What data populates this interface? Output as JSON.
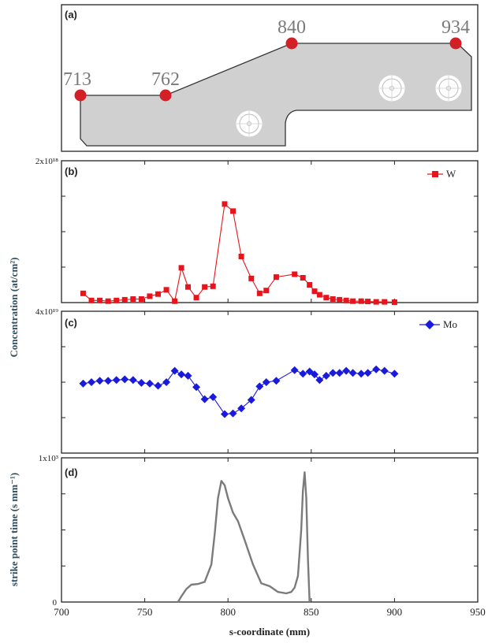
{
  "panels": {
    "a": "(a)",
    "b": "(b)",
    "c": "(c)",
    "d": "(d)"
  },
  "shared": {
    "ylabel_bc": "Concentration (at/cm²)",
    "ylabel_d": "strike point time (s mm⁻¹)",
    "xlabel": "s-coordinate (mm)",
    "xticks": [
      "700",
      "750",
      "800",
      "850",
      "900",
      "950"
    ]
  },
  "chart_data": [
    {
      "type": "diagram",
      "panel": "(a)",
      "markers": [
        {
          "label": "713",
          "s": 713
        },
        {
          "label": "762",
          "s": 762
        },
        {
          "label": "840",
          "s": 840
        },
        {
          "label": "934",
          "s": 934
        }
      ],
      "marker_color": "#d32027"
    },
    {
      "type": "line",
      "panel": "(b)",
      "ytop_label": "2x10¹⁸",
      "ybottom_label": "",
      "xlim": [
        700,
        950
      ],
      "ylim": [
        0,
        1
      ],
      "series": [
        {
          "name": "W",
          "color": "#e8141b",
          "marker": "square",
          "x": [
            713,
            718,
            723,
            728,
            733,
            738,
            743,
            748,
            753,
            758,
            763,
            768,
            772,
            776,
            781,
            786,
            791,
            798,
            803,
            808,
            814,
            819,
            823,
            829,
            840,
            845,
            849,
            852,
            855,
            859,
            863,
            867,
            871,
            875,
            880,
            884,
            889,
            894,
            900
          ],
          "y": [
            0.065,
            0.015,
            0.015,
            0.01,
            0.015,
            0.02,
            0.025,
            0.025,
            0.045,
            0.06,
            0.09,
            0.01,
            0.245,
            0.11,
            0.035,
            0.11,
            0.115,
            0.695,
            0.645,
            0.325,
            0.17,
            0.065,
            0.085,
            0.18,
            0.2,
            0.175,
            0.125,
            0.08,
            0.055,
            0.035,
            0.025,
            0.02,
            0.015,
            0.01,
            0.01,
            0.008,
            0.005,
            0.005,
            0.003
          ]
        }
      ]
    },
    {
      "type": "line",
      "panel": "(c)",
      "ytop_label": "4x10¹⁹",
      "xlim": [
        700,
        950
      ],
      "ylim": [
        0,
        1
      ],
      "series": [
        {
          "name": "Mo",
          "color": "#1a1adf",
          "marker": "diamond",
          "x": [
            713,
            718,
            723,
            728,
            733,
            738,
            743,
            748,
            753,
            758,
            763,
            768,
            772,
            776,
            781,
            786,
            791,
            798,
            803,
            808,
            814,
            819,
            823,
            829,
            840,
            845,
            849,
            852,
            855,
            859,
            863,
            867,
            871,
            875,
            880,
            884,
            889,
            894,
            900
          ],
          "y": [
            0.49,
            0.5,
            0.51,
            0.51,
            0.515,
            0.52,
            0.515,
            0.495,
            0.49,
            0.475,
            0.5,
            0.58,
            0.555,
            0.545,
            0.465,
            0.38,
            0.395,
            0.275,
            0.28,
            0.315,
            0.375,
            0.47,
            0.5,
            0.51,
            0.585,
            0.56,
            0.575,
            0.555,
            0.515,
            0.545,
            0.565,
            0.565,
            0.58,
            0.565,
            0.56,
            0.565,
            0.59,
            0.58,
            0.56
          ]
        }
      ]
    },
    {
      "type": "line",
      "panel": "(d)",
      "ytop_label": "1x10³",
      "ybottom_label": "0",
      "xlim": [
        700,
        950
      ],
      "ylim": [
        0,
        1000
      ],
      "series": [
        {
          "color": "#7b7b7b",
          "x": [
            770,
            772,
            775,
            778,
            782,
            786,
            790,
            792,
            794,
            796,
            798,
            800,
            803,
            806,
            810,
            815,
            820,
            825,
            830,
            835,
            838,
            840,
            842,
            844,
            845,
            846,
            847,
            848,
            849
          ],
          "y": [
            0,
            40,
            90,
            120,
            125,
            140,
            260,
            470,
            720,
            840,
            810,
            720,
            620,
            560,
            430,
            260,
            130,
            110,
            70,
            60,
            70,
            100,
            180,
            500,
            770,
            900,
            720,
            300,
            0
          ]
        }
      ]
    }
  ]
}
